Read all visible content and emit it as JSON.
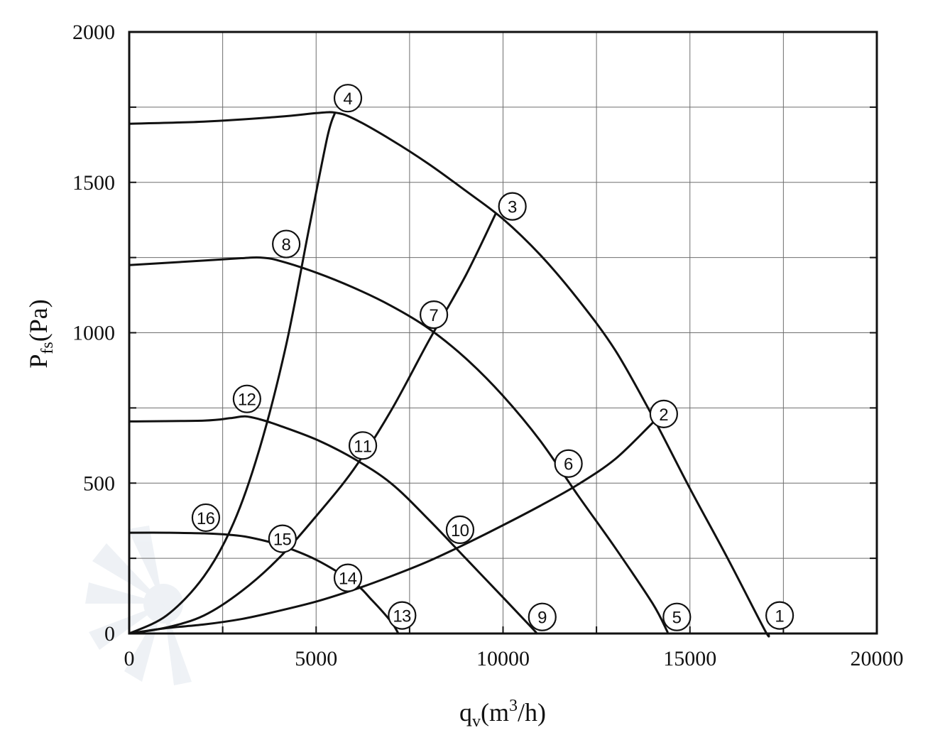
{
  "chart_data": {
    "type": "line",
    "xlabel": {
      "main": "q",
      "sub": "v",
      "unit_open": "(m",
      "unit_sup": "3",
      "unit_close": "/h)"
    },
    "ylabel": {
      "main": "P",
      "sub": "fs",
      "unit": "(Pa)"
    },
    "xlim": [
      0,
      20000
    ],
    "ylim": [
      0,
      2000
    ],
    "x_ticks": [
      0,
      5000,
      10000,
      15000,
      20000
    ],
    "y_ticks": [
      0,
      500,
      1000,
      1500,
      2000
    ],
    "x_tick_labels": [
      "0",
      "5000",
      "10000",
      "15000",
      "20000"
    ],
    "y_tick_labels": [
      "0",
      "500",
      "1000",
      "1500",
      "2000"
    ],
    "grid": true,
    "fan_curves": [
      {
        "id": "1-4",
        "points": [
          [
            0,
            1695
          ],
          [
            2000,
            1702
          ],
          [
            4000,
            1718
          ],
          [
            5000,
            1730
          ],
          [
            5500,
            1732
          ],
          [
            6000,
            1712
          ],
          [
            7000,
            1642
          ],
          [
            8000,
            1562
          ],
          [
            9000,
            1472
          ],
          [
            10000,
            1378
          ],
          [
            11000,
            1258
          ],
          [
            12000,
            1112
          ],
          [
            13000,
            942
          ],
          [
            14000,
            722
          ],
          [
            15000,
            482
          ],
          [
            16000,
            252
          ],
          [
            17000,
            12
          ],
          [
            17100,
            0
          ]
        ]
      },
      {
        "id": "5-8",
        "points": [
          [
            0,
            1225
          ],
          [
            2000,
            1240
          ],
          [
            3000,
            1248
          ],
          [
            3500,
            1250
          ],
          [
            4000,
            1240
          ],
          [
            5000,
            1200
          ],
          [
            6000,
            1150
          ],
          [
            7000,
            1090
          ],
          [
            8000,
            1015
          ],
          [
            9000,
            915
          ],
          [
            10000,
            790
          ],
          [
            11000,
            640
          ],
          [
            12000,
            460
          ],
          [
            13000,
            285
          ],
          [
            14000,
            100
          ],
          [
            14400,
            5
          ]
        ]
      },
      {
        "id": "9-12",
        "points": [
          [
            0,
            705
          ],
          [
            2000,
            708
          ],
          [
            2700,
            716
          ],
          [
            3100,
            722
          ],
          [
            3500,
            712
          ],
          [
            4000,
            692
          ],
          [
            5000,
            645
          ],
          [
            6000,
            582
          ],
          [
            7000,
            500
          ],
          [
            8000,
            380
          ],
          [
            9000,
            250
          ],
          [
            10000,
            120
          ],
          [
            10800,
            15
          ],
          [
            10900,
            0
          ]
        ]
      },
      {
        "id": "13-16",
        "points": [
          [
            0,
            335
          ],
          [
            1000,
            335
          ],
          [
            2000,
            333
          ],
          [
            2700,
            328
          ],
          [
            3200,
            320
          ],
          [
            4000,
            295
          ],
          [
            5000,
            245
          ],
          [
            6000,
            170
          ],
          [
            6500,
            110
          ],
          [
            7000,
            40
          ],
          [
            7200,
            0
          ]
        ]
      }
    ],
    "system_curves": [
      {
        "id": "1-16",
        "points": [
          [
            0,
            0
          ],
          [
            1000,
            18
          ],
          [
            2000,
            30
          ],
          [
            3000,
            48
          ],
          [
            4000,
            75
          ],
          [
            5000,
            106
          ],
          [
            6000,
            145
          ],
          [
            7000,
            190
          ],
          [
            8000,
            240
          ],
          [
            9000,
            298
          ],
          [
            10000,
            360
          ],
          [
            11000,
            425
          ],
          [
            12000,
            495
          ],
          [
            13000,
            580
          ],
          [
            14000,
            700
          ]
        ]
      },
      {
        "id": "2-15",
        "points": [
          [
            0,
            0
          ],
          [
            1000,
            20
          ],
          [
            2000,
            60
          ],
          [
            3000,
            140
          ],
          [
            4000,
            250
          ],
          [
            5000,
            390
          ],
          [
            6000,
            545
          ],
          [
            7000,
            740
          ],
          [
            8000,
            970
          ],
          [
            9000,
            1190
          ],
          [
            9800,
            1395
          ]
        ]
      },
      {
        "id": "3-14",
        "points": [
          [
            0,
            0
          ],
          [
            1000,
            60
          ],
          [
            2000,
            190
          ],
          [
            2800,
            370
          ],
          [
            3500,
            620
          ],
          [
            4200,
            960
          ],
          [
            4800,
            1340
          ],
          [
            5300,
            1650
          ],
          [
            5500,
            1730
          ]
        ]
      }
    ],
    "markers": [
      {
        "label": "1",
        "x": 17400,
        "y": 60
      },
      {
        "label": "2",
        "x": 14300,
        "y": 730
      },
      {
        "label": "3",
        "x": 10250,
        "y": 1420
      },
      {
        "label": "4",
        "x": 5850,
        "y": 1780
      },
      {
        "label": "5",
        "x": 14650,
        "y": 55
      },
      {
        "label": "6",
        "x": 11750,
        "y": 565
      },
      {
        "label": "7",
        "x": 8150,
        "y": 1060
      },
      {
        "label": "8",
        "x": 4200,
        "y": 1295
      },
      {
        "label": "9",
        "x": 11050,
        "y": 55
      },
      {
        "label": "10",
        "x": 8850,
        "y": 345
      },
      {
        "label": "11",
        "x": 6250,
        "y": 625
      },
      {
        "label": "12",
        "x": 3150,
        "y": 780
      },
      {
        "label": "13",
        "x": 7300,
        "y": 60
      },
      {
        "label": "14",
        "x": 5850,
        "y": 185
      },
      {
        "label": "15",
        "x": 4100,
        "y": 315
      },
      {
        "label": "16",
        "x": 2050,
        "y": 385
      }
    ]
  }
}
